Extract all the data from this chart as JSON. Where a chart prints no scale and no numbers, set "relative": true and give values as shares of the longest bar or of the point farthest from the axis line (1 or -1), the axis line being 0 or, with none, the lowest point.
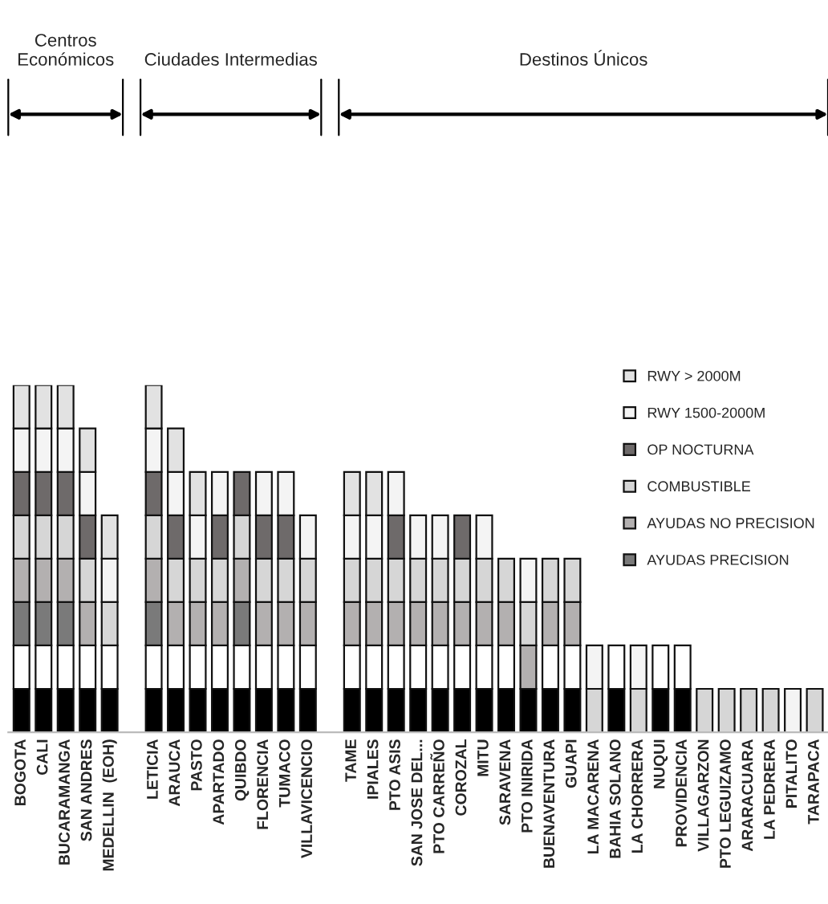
{
  "chart_data": {
    "type": "bar",
    "stacked": true,
    "relative": true,
    "legend": "top right",
    "categories": [
      "BOGOTA",
      "CALI",
      "BUCARAMANGA",
      "SAN ANDRES",
      "MEDELLIN  (EOH)",
      null,
      "LETICIA",
      "ARAUCA",
      "PASTO",
      "APARTADO",
      "QUIBDO",
      "FLORENCIA",
      "TUMACO",
      "VILLAVICENCIO",
      null,
      "TAME",
      "IPIALES",
      "PTO ASIS",
      "SAN JOSE DEL...",
      "PTO CARREÑO",
      "COROZAL",
      "MITU",
      "SARAVENA",
      "PTO INIRIDA",
      "BUENAVENTURA",
      "GUAPI",
      "LA MACARENA",
      "BAHIA SOLANO",
      "LA CHORRERA",
      "NUQUI",
      "PROVIDENCIA",
      "VILLAGARZON",
      "PTO LEGUIZAMO",
      "ARARACUARA",
      "LA PEDRERA",
      "PITALITO",
      "TARAPACA"
    ],
    "series": [
      {
        "color": "#000000",
        "values": [
          0.125,
          0.125,
          0.125,
          0.125,
          0.125,
          null,
          0.125,
          0.125,
          0.125,
          0.125,
          0.125,
          0.125,
          0.125,
          0.125,
          null,
          0.125,
          0.125,
          0.125,
          0.125,
          0.125,
          0.125,
          0.125,
          0.125,
          0.125,
          0.125,
          0.125,
          null,
          0.125,
          null,
          0.125,
          0.125,
          null,
          null,
          null,
          null,
          null,
          null
        ]
      },
      {
        "color": "#ffffff",
        "values": [
          0.125,
          0.125,
          0.125,
          0.125,
          0.125,
          null,
          0.125,
          0.125,
          0.125,
          0.125,
          0.125,
          0.125,
          0.125,
          0.125,
          null,
          0.125,
          0.125,
          0.125,
          0.125,
          0.125,
          0.125,
          0.125,
          0.125,
          null,
          0.125,
          0.125,
          null,
          0.125,
          null,
          0.125,
          0.125,
          null,
          null,
          null,
          null,
          null,
          null
        ]
      },
      {
        "name": "AYUDAS PRECISION",
        "color": "#7a7a7a",
        "values": [
          0.125,
          0.125,
          0.125,
          null,
          null,
          null,
          0.125,
          null,
          null,
          null,
          0.125,
          null,
          null,
          null,
          null,
          null,
          null,
          null,
          null,
          null,
          null,
          null,
          null,
          null,
          null,
          null,
          null,
          null,
          null,
          null,
          null,
          null,
          null,
          null,
          null,
          null,
          null
        ]
      },
      {
        "name": "AYUDAS NO PRECISION",
        "color": "#b3b0b0",
        "values": [
          0.125,
          0.125,
          0.125,
          0.125,
          null,
          null,
          0.125,
          0.125,
          0.125,
          0.125,
          0.125,
          0.125,
          0.125,
          0.125,
          null,
          0.125,
          0.125,
          0.125,
          0.125,
          0.125,
          0.125,
          0.125,
          0.125,
          0.125,
          0.125,
          0.125,
          null,
          null,
          null,
          null,
          null,
          null,
          null,
          null,
          null,
          null,
          null
        ]
      },
      {
        "name": "COMBUSTIBLE",
        "color": "#d6d6d6",
        "values": [
          0.125,
          0.125,
          0.125,
          0.125,
          0.125,
          null,
          0.125,
          0.125,
          0.125,
          0.125,
          0.125,
          0.125,
          0.125,
          0.125,
          null,
          0.125,
          0.125,
          0.125,
          0.125,
          0.125,
          0.125,
          0.125,
          0.125,
          0.125,
          0.125,
          0.125,
          0.125,
          null,
          0.125,
          null,
          null,
          0.125,
          0.125,
          0.125,
          0.125,
          null,
          0.125
        ]
      },
      {
        "name": "OP NOCTURNA",
        "color": "#6e6a6a",
        "values": [
          0.125,
          0.125,
          0.125,
          0.125,
          null,
          null,
          0.125,
          0.125,
          null,
          0.125,
          0.125,
          0.125,
          0.125,
          null,
          null,
          null,
          null,
          0.125,
          null,
          null,
          0.125,
          null,
          null,
          null,
          null,
          null,
          null,
          null,
          null,
          null,
          null,
          null,
          null,
          null,
          null,
          null,
          null
        ]
      },
      {
        "name": "RWY 1500-2000M",
        "color": "#f4f4f4",
        "values": [
          0.125,
          0.125,
          0.125,
          0.125,
          0.125,
          null,
          0.125,
          0.125,
          0.125,
          0.125,
          null,
          0.125,
          0.125,
          0.125,
          null,
          0.125,
          0.125,
          0.125,
          0.125,
          0.125,
          null,
          0.125,
          null,
          0.125,
          null,
          null,
          0.125,
          null,
          0.125,
          null,
          null,
          null,
          null,
          null,
          null,
          0.125,
          null
        ]
      },
      {
        "name": "RWY > 2000M",
        "color": "#e2e2e2",
        "values": [
          0.125,
          0.125,
          0.125,
          0.125,
          0.125,
          null,
          0.125,
          0.125,
          0.125,
          null,
          null,
          null,
          null,
          null,
          null,
          0.125,
          0.125,
          null,
          null,
          null,
          null,
          null,
          null,
          null,
          null,
          null,
          null,
          null,
          null,
          null,
          null,
          null,
          null,
          null,
          null,
          null,
          null
        ]
      }
    ],
    "annotations": [
      "Centros\nEconómicos",
      "Ciudades Intermedias",
      "Destinos Únicos"
    ]
  }
}
